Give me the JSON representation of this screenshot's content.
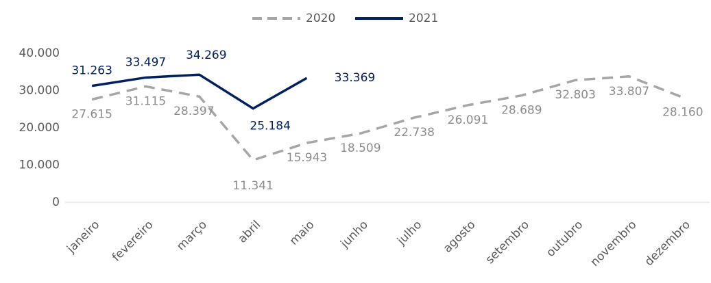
{
  "chart_data": {
    "type": "line",
    "categories": [
      "janeiro",
      "fevereiro",
      "março",
      "abril",
      "maio",
      "junho",
      "julho",
      "agosto",
      "setembro",
      "outubro",
      "novembro",
      "dezembro"
    ],
    "series": [
      {
        "name": "2020",
        "color": "#a6a6a6",
        "dash": true,
        "values": [
          27615,
          31115,
          28397,
          11341,
          15943,
          18509,
          22738,
          26091,
          28689,
          32803,
          33807,
          28160
        ],
        "value_labels": [
          "27.615",
          "31.115",
          "28.397",
          "11.341",
          "15.943",
          "18.509",
          "22.738",
          "26.091",
          "28.689",
          "32.803",
          "33.807",
          "28.160"
        ]
      },
      {
        "name": "2021",
        "color": "#002060",
        "dash": false,
        "values": [
          31263,
          33497,
          34269,
          25184,
          33369,
          null,
          null,
          null,
          null,
          null,
          null,
          null
        ],
        "value_labels": [
          "31.263",
          "33.497",
          "34.269",
          "25.184",
          "33.369",
          null,
          null,
          null,
          null,
          null,
          null,
          null
        ]
      }
    ],
    "ylim": [
      0,
      40000
    ],
    "yticks": [
      {
        "value": 0,
        "label": "0"
      },
      {
        "value": 10000,
        "label": "10.000"
      },
      {
        "value": 20000,
        "label": "20.000"
      },
      {
        "value": 30000,
        "label": "30.000"
      },
      {
        "value": 40000,
        "label": "40.000"
      }
    ],
    "legend": "top"
  }
}
